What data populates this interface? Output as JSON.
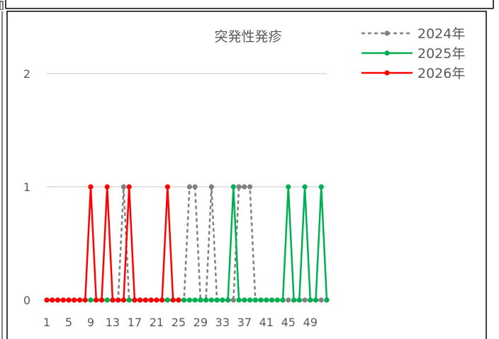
{
  "chart_data": {
    "type": "line",
    "title": "突発性発疹",
    "xlabel": "",
    "ylabel": "",
    "ylim": [
      0,
      2
    ],
    "y_ticks": [
      0,
      1,
      2
    ],
    "x_tick_labels": [
      "1",
      "5",
      "9",
      "13",
      "17",
      "21",
      "25",
      "29",
      "33",
      "37",
      "41",
      "45",
      "49"
    ],
    "x_tick_values": [
      1,
      5,
      9,
      13,
      17,
      21,
      25,
      29,
      33,
      37,
      41,
      45,
      49
    ],
    "x_range": [
      1,
      52
    ],
    "grid": true,
    "legend_position": "top-right",
    "series": [
      {
        "name": "2024年",
        "color": "#808080",
        "style": "dashed",
        "weeks": [
          1,
          2,
          3,
          4,
          5,
          6,
          7,
          8,
          9,
          10,
          11,
          12,
          13,
          14,
          15,
          16,
          17,
          18,
          19,
          20,
          21,
          22,
          23,
          24,
          25,
          26,
          27,
          28,
          29,
          30,
          31,
          32,
          33,
          34,
          35,
          36,
          37,
          38,
          39,
          40,
          41,
          42,
          43,
          44,
          45,
          46,
          47,
          48,
          49,
          50,
          51,
          52
        ],
        "values": [
          0,
          0,
          0,
          0,
          0,
          0,
          0,
          0,
          0,
          0,
          0,
          0,
          0,
          0,
          1,
          0,
          0,
          0,
          0,
          0,
          0,
          0,
          0,
          0,
          0,
          0,
          1,
          1,
          0,
          0,
          1,
          0,
          0,
          0,
          0,
          1,
          1,
          1,
          0,
          0,
          0,
          0,
          0,
          0,
          0,
          0,
          0,
          0,
          0,
          0,
          0,
          0
        ]
      },
      {
        "name": "2025年",
        "color": "#00B050",
        "style": "solid",
        "weeks": [
          1,
          2,
          3,
          4,
          5,
          6,
          7,
          8,
          9,
          10,
          11,
          12,
          13,
          14,
          15,
          16,
          17,
          18,
          19,
          20,
          21,
          22,
          23,
          24,
          25,
          26,
          27,
          28,
          29,
          30,
          31,
          32,
          33,
          34,
          35,
          36,
          37,
          38,
          39,
          40,
          41,
          42,
          43,
          44,
          45,
          46,
          47,
          48,
          49,
          50,
          51,
          52
        ],
        "values": [
          0,
          0,
          0,
          0,
          0,
          0,
          0,
          0,
          0,
          0,
          0,
          0,
          0,
          0,
          0,
          0,
          0,
          0,
          0,
          0,
          0,
          0,
          0,
          0,
          0,
          0,
          0,
          0,
          0,
          0,
          0,
          0,
          0,
          0,
          1,
          0,
          0,
          0,
          0,
          0,
          0,
          0,
          0,
          0,
          1,
          0,
          0,
          1,
          0,
          0,
          1,
          0
        ]
      },
      {
        "name": "2026年",
        "color": "#FF0000",
        "style": "solid",
        "weeks": [
          1,
          2,
          3,
          4,
          5,
          6,
          7,
          8,
          9,
          10,
          11,
          12,
          13,
          14,
          15,
          16,
          17,
          18,
          19,
          20,
          21,
          22,
          23,
          24,
          25
        ],
        "values": [
          0,
          0,
          0,
          0,
          0,
          0,
          0,
          0,
          1,
          0,
          0,
          1,
          0,
          0,
          0,
          1,
          0,
          0,
          0,
          0,
          0,
          0,
          1,
          0,
          0
        ]
      }
    ]
  }
}
